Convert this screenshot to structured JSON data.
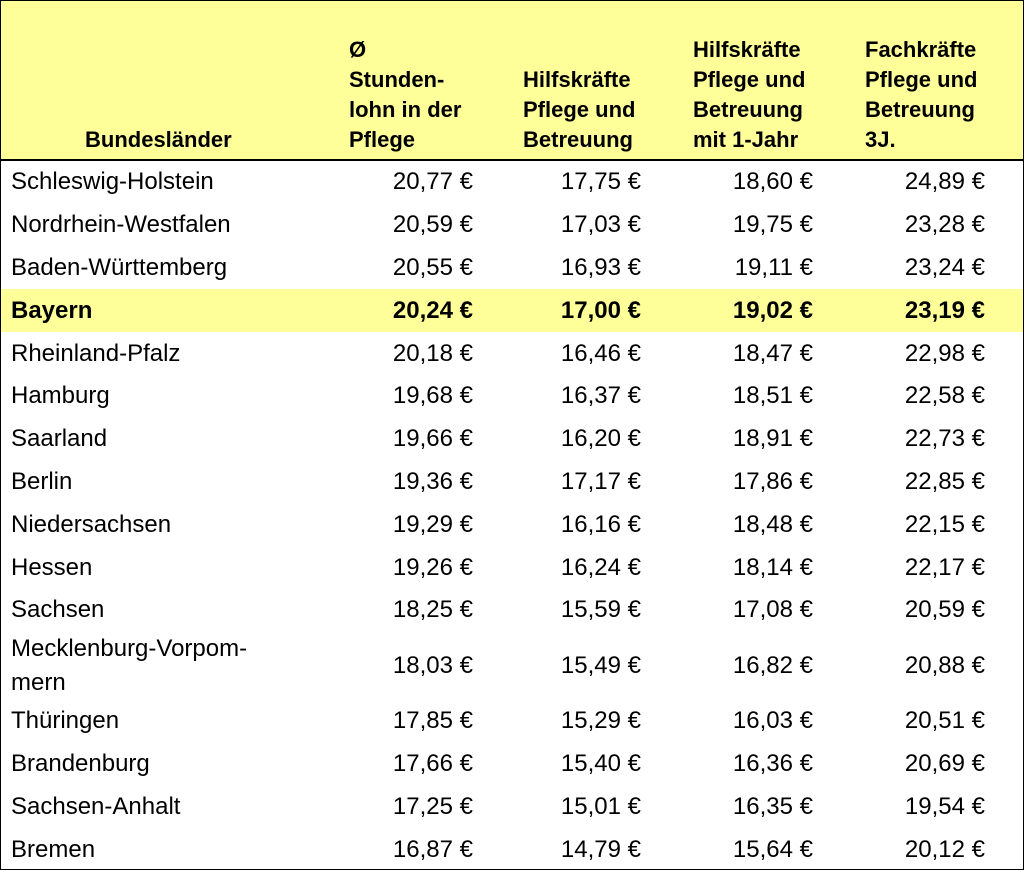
{
  "table": {
    "headers": [
      [
        "Bundesländer"
      ],
      [
        "Ø",
        "Stunden-",
        "lohn in der",
        "Pflege"
      ],
      [
        "Hilfskräfte",
        "Pflege und",
        "Betreuung"
      ],
      [
        "Hilfskräfte",
        "Pflege und",
        "Betreuung",
        "mit 1-Jahr"
      ],
      [
        "Fachkräfte",
        "Pflege und",
        "Betreuung",
        "3J."
      ]
    ],
    "rows": [
      {
        "state": "Schleswig-Holstein",
        "values": [
          "20,77 €",
          "17,75 €",
          "18,60 €",
          "24,89 €"
        ],
        "highlight": false
      },
      {
        "state": "Nordrhein-Westfalen",
        "values": [
          "20,59 €",
          "17,03 €",
          "19,75 €",
          "23,28 €"
        ],
        "highlight": false
      },
      {
        "state": "Baden-Württemberg",
        "values": [
          "20,55 €",
          "16,93 €",
          "19,11 €",
          "23,24 €"
        ],
        "highlight": false
      },
      {
        "state": "Bayern",
        "values": [
          "20,24 €",
          "17,00 €",
          "19,02 €",
          "23,19 €"
        ],
        "highlight": true
      },
      {
        "state": "Rheinland-Pfalz",
        "values": [
          "20,18 €",
          "16,46 €",
          "18,47 €",
          "22,98 €"
        ],
        "highlight": false
      },
      {
        "state": "Hamburg",
        "values": [
          "19,68 €",
          "16,37 €",
          "18,51 €",
          "22,58 €"
        ],
        "highlight": false
      },
      {
        "state": "Saarland",
        "values": [
          "19,66 €",
          "16,20 €",
          "18,91 €",
          "22,73 €"
        ],
        "highlight": false
      },
      {
        "state": "Berlin",
        "values": [
          "19,36 €",
          "17,17 €",
          "17,86 €",
          "22,85 €"
        ],
        "highlight": false
      },
      {
        "state": "Niedersachsen",
        "values": [
          "19,29 €",
          "16,16 €",
          "18,48 €",
          "22,15 €"
        ],
        "highlight": false
      },
      {
        "state": "Hessen",
        "values": [
          "19,26 €",
          "16,24 €",
          "18,14 €",
          "22,17 €"
        ],
        "highlight": false
      },
      {
        "state": "Sachsen",
        "values": [
          "18,25 €",
          "15,59 €",
          "17,08 €",
          "20,59 €"
        ],
        "highlight": false
      },
      {
        "state": "Mecklenburg-Vorpom-\nmern",
        "values": [
          "18,03 €",
          "15,49 €",
          "16,82 €",
          "20,88 €"
        ],
        "highlight": false
      },
      {
        "state": "Thüringen",
        "values": [
          "17,85 €",
          "15,29 €",
          "16,03 €",
          "20,51 €"
        ],
        "highlight": false
      },
      {
        "state": "Brandenburg",
        "values": [
          "17,66 €",
          "15,40 €",
          "16,36 €",
          "20,69 €"
        ],
        "highlight": false
      },
      {
        "state": "Sachsen-Anhalt",
        "values": [
          "17,25 €",
          "15,01 €",
          "16,35 €",
          "19,54 €"
        ],
        "highlight": false
      },
      {
        "state": "Bremen",
        "values": [
          "16,87 €",
          "14,79 €",
          "15,64 €",
          "20,12 €"
        ],
        "highlight": false
      }
    ]
  },
  "colors": {
    "header_bg": "#ffff99",
    "highlight_bg": "#ffff99",
    "border": "#000000"
  }
}
